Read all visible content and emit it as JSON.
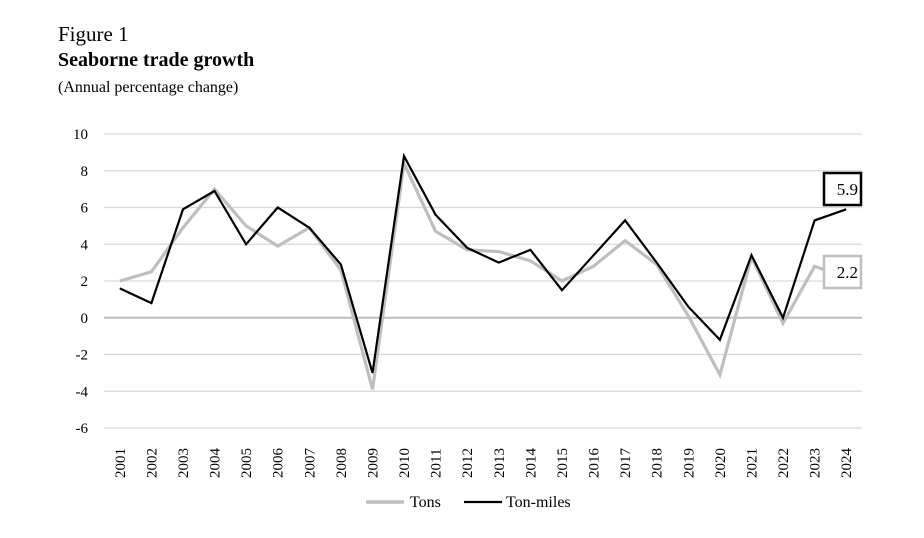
{
  "figure": {
    "label": "Figure 1",
    "title": "Seaborne trade growth",
    "subtitle": "(Annual percentage change)"
  },
  "chart_data": {
    "type": "line",
    "title": "Seaborne trade growth",
    "subtitle": "(Annual percentage change)",
    "xlabel": "",
    "ylabel": "",
    "ylim": [
      -6,
      10
    ],
    "yticks": [
      -6,
      -4,
      -2,
      0,
      2,
      4,
      6,
      8,
      10
    ],
    "grid": true,
    "legend_position": "bottom",
    "x": [
      "2001",
      "2002",
      "2003",
      "2004",
      "2005",
      "2006",
      "2007",
      "2008",
      "2009",
      "2010",
      "2011",
      "2012",
      "2013",
      "2014",
      "2015",
      "2016",
      "2017",
      "2018",
      "2019",
      "2020",
      "2021",
      "2022",
      "2023",
      "2024"
    ],
    "series": [
      {
        "name": "Tons",
        "color": "#bfbfbf",
        "values": [
          2.0,
          2.5,
          4.9,
          7.0,
          5.0,
          3.9,
          4.9,
          2.6,
          -3.9,
          8.4,
          4.7,
          3.7,
          3.6,
          3.1,
          2.0,
          2.8,
          4.2,
          2.9,
          0.1,
          -3.1,
          3.3,
          -0.3,
          2.8,
          2.2
        ],
        "end_label": "2.2"
      },
      {
        "name": "Ton-miles",
        "color": "#000000",
        "values": [
          1.6,
          0.8,
          5.9,
          6.9,
          4.0,
          6.0,
          4.9,
          2.9,
          -3.0,
          8.8,
          5.6,
          3.8,
          3.0,
          3.7,
          1.5,
          3.4,
          5.3,
          3.0,
          0.6,
          -1.2,
          3.4,
          0.0,
          5.3,
          5.9
        ],
        "end_label": "5.9"
      }
    ]
  }
}
